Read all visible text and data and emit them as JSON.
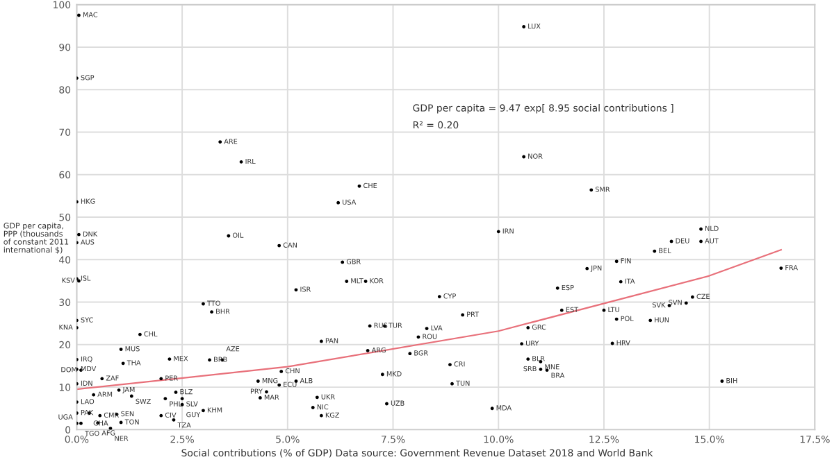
{
  "chart_data": {
    "type": "scatter",
    "xlabel": "Social contributions (% of GDP) Data source: Government Revenue Dataset 2018 and World Bank",
    "ylabel": "GDP per capita,\nPPP (thousands\nof constant 2011\ninternational $)",
    "xlim": [
      0,
      17.5
    ],
    "ylim": [
      0,
      100
    ],
    "xticks": [
      {
        "value": 0,
        "label": "0.0%"
      },
      {
        "value": 2.5,
        "label": "2.5%"
      },
      {
        "value": 5,
        "label": "5.0%"
      },
      {
        "value": 7.5,
        "label": "7.5%"
      },
      {
        "value": 10,
        "label": "10.0%"
      },
      {
        "value": 12.5,
        "label": "12.5%"
      },
      {
        "value": 15,
        "label": "15.0%"
      },
      {
        "value": 17.5,
        "label": "17.5%"
      }
    ],
    "yticks": [
      0,
      10,
      20,
      30,
      40,
      50,
      60,
      70,
      80,
      90,
      100
    ],
    "grid": true,
    "series": [
      {
        "marker": "circle",
        "color": "#000000",
        "x": [
          0.05,
          0,
          3.4,
          3.9,
          6.7,
          0,
          6.2,
          10.6,
          10.6,
          12.2,
          10.0,
          14.8,
          0.05,
          0,
          3.6,
          4.8,
          0,
          0.05,
          3.0,
          3.2,
          0,
          0,
          1.5,
          1.05,
          2.2,
          3.15,
          3.45,
          1.1,
          0,
          0,
          0.1,
          0.6,
          2.0,
          0,
          1.0,
          2.35,
          0.4,
          1.3,
          2.1,
          2.5,
          2.5,
          3.0,
          0,
          0,
          0.3,
          0.55,
          0.95,
          2.0,
          2.3,
          0,
          0.1,
          0.5,
          1.05,
          0.8,
          8.6,
          9.15,
          6.3,
          6.4,
          6.85,
          5.2,
          6.95,
          7.3,
          8.3,
          10.7,
          8.1,
          5.8,
          10.55,
          6.9,
          7.9,
          10.7,
          11.0,
          11.0,
          11.15,
          8.85,
          4.85,
          7.25,
          15.3,
          8.9,
          4.3,
          5.2,
          4.8,
          4.5,
          4.35,
          5.7,
          7.35,
          5.6,
          9.85,
          5.8,
          14.8,
          14.1,
          13.7,
          12.8,
          12.1,
          16.7,
          12.9,
          11.4,
          14.6,
          14.45,
          14.05,
          11.5,
          12.5,
          12.8,
          13.6,
          12.7
        ],
        "values": [
          97.5,
          82.7,
          67.7,
          63,
          57.3,
          53.6,
          53.4,
          94.8,
          64.2,
          56.4,
          46.6,
          47.2,
          45.9,
          44,
          45.6,
          43.3,
          35.5,
          35,
          29.6,
          27.7,
          25.7,
          24,
          22.4,
          18.9,
          16.6,
          16.4,
          16.4,
          15.6,
          16.5,
          14.2,
          14,
          12,
          12,
          10.8,
          9.3,
          8.8,
          8.2,
          7.9,
          7.3,
          7.3,
          5.9,
          4.5,
          6.5,
          3.9,
          3.9,
          3.3,
          3.6,
          3.3,
          2.3,
          1.5,
          1.5,
          1.6,
          1.7,
          0.3,
          31.3,
          27,
          39.4,
          34.9,
          34.9,
          32.9,
          24.4,
          24.4,
          23.8,
          24,
          21.8,
          20.8,
          20.2,
          18.6,
          17.9,
          16.6,
          16.0,
          14.2,
          14,
          15.3,
          13.7,
          13,
          11.4,
          10.8,
          11.4,
          11.4,
          10.5,
          8.9,
          7.5,
          7.6,
          6.1,
          5.2,
          5.0,
          3.3,
          44.3,
          44.3,
          42,
          39.6,
          37.9,
          38,
          34.8,
          33.3,
          31.2,
          29.8,
          29.2,
          28.1,
          28.1,
          26,
          25.7,
          20.3
        ]
      },
      {
        "type": "line",
        "color": "#e8707a",
        "x": [
          0,
          5,
          10,
          15,
          16.7
        ],
        "values": [
          9.5,
          14.8,
          23.2,
          36.2,
          42.3
        ]
      }
    ],
    "annotations": [
      "GDP per capita = 9.47 exp[ 8.95 social contributions ]",
      "R² = 0.20",
      {
        "text": "MAC",
        "x": 0.05,
        "y": 97.5
      },
      {
        "text": "SGP",
        "x": 0,
        "y": 82.7
      },
      {
        "text": "ARE",
        "x": 3.4,
        "y": 67.7
      },
      {
        "text": "IRL",
        "x": 3.9,
        "y": 63
      },
      {
        "text": "CHE",
        "x": 6.7,
        "y": 57.3
      },
      {
        "text": "HKG",
        "x": 0,
        "y": 53.6
      },
      {
        "text": "USA",
        "x": 6.2,
        "y": 53.4
      },
      {
        "text": "LUX",
        "x": 10.6,
        "y": 94.8
      },
      {
        "text": "NOR",
        "x": 10.6,
        "y": 64.2
      },
      {
        "text": "SMR",
        "x": 12.2,
        "y": 56.4
      },
      {
        "text": "IRN",
        "x": 10.0,
        "y": 46.6
      },
      {
        "text": "NLD",
        "x": 14.8,
        "y": 47.2
      },
      {
        "text": "DNK",
        "x": 0.05,
        "y": 45.9
      },
      {
        "text": "AUS",
        "x": 0,
        "y": 44
      },
      {
        "text": "OIL",
        "x": 3.6,
        "y": 45.6
      },
      {
        "text": "CAN",
        "x": 4.8,
        "y": 43.3
      },
      {
        "text": "ISL",
        "x": 0,
        "y": 35.5
      },
      {
        "text": "KSV",
        "x": 0.05,
        "y": 35
      },
      {
        "text": "TTO",
        "x": 3.0,
        "y": 29.6
      },
      {
        "text": "BHR",
        "x": 3.2,
        "y": 27.7
      },
      {
        "text": "SYC",
        "x": 0,
        "y": 25.7
      },
      {
        "text": "KNA",
        "x": 0,
        "y": 24
      },
      {
        "text": "CHL",
        "x": 1.5,
        "y": 22.4
      },
      {
        "text": "MUS",
        "x": 1.05,
        "y": 18.9
      },
      {
        "text": "MEX",
        "x": 2.2,
        "y": 16.6
      },
      {
        "text": "BRB",
        "x": 3.15,
        "y": 16.4
      },
      {
        "text": "AZE",
        "x": 3.45,
        "y": 16.4
      },
      {
        "text": "THA",
        "x": 1.1,
        "y": 15.6
      },
      {
        "text": "IRQ",
        "x": 0,
        "y": 16.5
      },
      {
        "text": "MDV",
        "x": 0,
        "y": 14.2
      },
      {
        "text": "DOM",
        "x": 0.1,
        "y": 14
      },
      {
        "text": "ZAF",
        "x": 0.6,
        "y": 12
      },
      {
        "text": "PER",
        "x": 2.0,
        "y": 12
      },
      {
        "text": "IDN",
        "x": 0,
        "y": 10.8
      },
      {
        "text": "JAM",
        "x": 1.0,
        "y": 9.3
      },
      {
        "text": "BLZ",
        "x": 2.35,
        "y": 8.8
      },
      {
        "text": "ARM",
        "x": 0.4,
        "y": 8.2
      },
      {
        "text": "SWZ",
        "x": 1.3,
        "y": 7.9
      },
      {
        "text": "PHL",
        "x": 2.1,
        "y": 7.3
      },
      {
        "text": "SLV",
        "x": 2.5,
        "y": 7.3
      },
      {
        "text": "GUY",
        "x": 2.5,
        "y": 5.9
      },
      {
        "text": "KHM",
        "x": 3.0,
        "y": 4.5
      },
      {
        "text": "LAO",
        "x": 0,
        "y": 6.5
      },
      {
        "text": "PAK",
        "x": 0,
        "y": 3.9
      },
      {
        "text": "GHA",
        "x": 0.3,
        "y": 3.9
      },
      {
        "text": "CMR",
        "x": 0.55,
        "y": 3.3
      },
      {
        "text": "SEN",
        "x": 0.95,
        "y": 3.6
      },
      {
        "text": "CIV",
        "x": 2.0,
        "y": 3.3
      },
      {
        "text": "TZA",
        "x": 2.3,
        "y": 2.3
      },
      {
        "text": "UGA",
        "x": 0,
        "y": 1.5
      },
      {
        "text": "TGO",
        "x": 0.1,
        "y": 1.5
      },
      {
        "text": "AFG",
        "x": 0.5,
        "y": 1.6
      },
      {
        "text": "TON",
        "x": 1.05,
        "y": 1.7
      },
      {
        "text": "NER",
        "x": 0.8,
        "y": 0.3
      },
      {
        "text": "CYP",
        "x": 8.6,
        "y": 31.3
      },
      {
        "text": "PRT",
        "x": 9.15,
        "y": 27
      },
      {
        "text": "GBR",
        "x": 6.3,
        "y": 39.4
      },
      {
        "text": "MLT",
        "x": 6.4,
        "y": 34.9
      },
      {
        "text": "KOR",
        "x": 6.85,
        "y": 34.9
      },
      {
        "text": "ISR",
        "x": 5.2,
        "y": 32.9
      },
      {
        "text": "RUS",
        "x": 6.95,
        "y": 24.4
      },
      {
        "text": "TUR",
        "x": 7.3,
        "y": 24.4
      },
      {
        "text": "LVA",
        "x": 8.3,
        "y": 23.8
      },
      {
        "text": "GRC",
        "x": 10.7,
        "y": 24
      },
      {
        "text": "ROU",
        "x": 8.1,
        "y": 21.8
      },
      {
        "text": "PAN",
        "x": 5.8,
        "y": 20.8
      },
      {
        "text": "URY",
        "x": 10.55,
        "y": 20.2
      },
      {
        "text": "ARG",
        "x": 6.9,
        "y": 18.6
      },
      {
        "text": "BGR",
        "x": 7.9,
        "y": 17.9
      },
      {
        "text": "BLR",
        "x": 10.7,
        "y": 16.6
      },
      {
        "text": "MNE",
        "x": 11.0,
        "y": 16.0
      },
      {
        "text": "SRB",
        "x": 11.0,
        "y": 14.2
      },
      {
        "text": "BRA",
        "x": 11.15,
        "y": 14
      },
      {
        "text": "CRI",
        "x": 8.85,
        "y": 15.3
      },
      {
        "text": "CHN",
        "x": 4.85,
        "y": 13.7
      },
      {
        "text": "MKD",
        "x": 7.25,
        "y": 13
      },
      {
        "text": "BIH",
        "x": 15.3,
        "y": 11.4
      },
      {
        "text": "TUN",
        "x": 8.9,
        "y": 10.8
      },
      {
        "text": "MNG",
        "x": 4.3,
        "y": 11.4
      },
      {
        "text": "ALB",
        "x": 5.2,
        "y": 11.4
      },
      {
        "text": "ECU",
        "x": 4.8,
        "y": 10.5
      },
      {
        "text": "PRY",
        "x": 4.5,
        "y": 8.9
      },
      {
        "text": "MAR",
        "x": 4.35,
        "y": 7.5
      },
      {
        "text": "UKR",
        "x": 5.7,
        "y": 7.6
      },
      {
        "text": "UZB",
        "x": 7.35,
        "y": 6.1
      },
      {
        "text": "NIC",
        "x": 5.6,
        "y": 5.2
      },
      {
        "text": "MDA",
        "x": 9.85,
        "y": 5.0
      },
      {
        "text": "KGZ",
        "x": 5.8,
        "y": 3.3
      },
      {
        "text": "AUT",
        "x": 14.8,
        "y": 44.3
      },
      {
        "text": "DEU",
        "x": 14.1,
        "y": 44.3
      },
      {
        "text": "BEL",
        "x": 13.7,
        "y": 42
      },
      {
        "text": "FIN",
        "x": 12.8,
        "y": 39.6
      },
      {
        "text": "JPN",
        "x": 12.1,
        "y": 37.9
      },
      {
        "text": "FRA",
        "x": 16.7,
        "y": 38
      },
      {
        "text": "ITA",
        "x": 12.9,
        "y": 34.8
      },
      {
        "text": "ESP",
        "x": 11.4,
        "y": 33.3
      },
      {
        "text": "CZE",
        "x": 14.6,
        "y": 31.2
      },
      {
        "text": "SVN",
        "x": 14.45,
        "y": 29.8
      },
      {
        "text": "SVK",
        "x": 14.05,
        "y": 29.2
      },
      {
        "text": "EST",
        "x": 11.5,
        "y": 28.1
      },
      {
        "text": "LTU",
        "x": 12.5,
        "y": 28.1
      },
      {
        "text": "POL",
        "x": 12.8,
        "y": 26
      },
      {
        "text": "HUN",
        "x": 13.6,
        "y": 25.7
      },
      {
        "text": "HRV",
        "x": 12.7,
        "y": 20.3
      }
    ]
  }
}
